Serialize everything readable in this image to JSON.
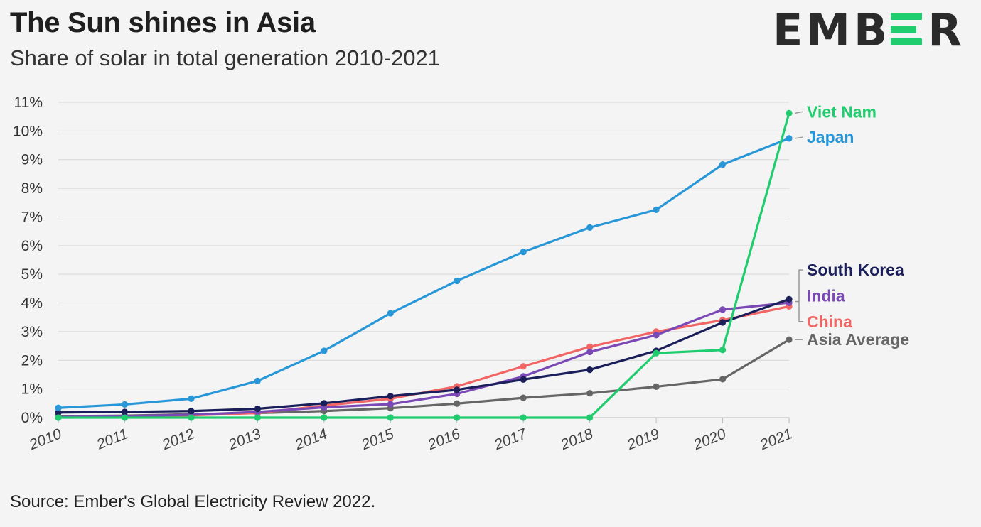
{
  "header": {
    "title": "The Sun shines in Asia",
    "subtitle": "Share of solar in total generation 2010-2021"
  },
  "logo": {
    "text_left": "EMB",
    "text_right": "R",
    "accent": "#1fcc6e"
  },
  "footer": {
    "source": "Source: Ember's Global Electricity Review 2022."
  },
  "chart_data": {
    "type": "line",
    "title": "The Sun shines in Asia",
    "subtitle": "Share of solar in total generation 2010-2021",
    "xlabel": "",
    "ylabel": "",
    "x": [
      "2010",
      "2011",
      "2012",
      "2013",
      "2014",
      "2015",
      "2016",
      "2017",
      "2018",
      "2019",
      "2020",
      "2021"
    ],
    "y_ticks": [
      "0%",
      "1%",
      "2%",
      "3%",
      "4%",
      "5%",
      "6%",
      "7%",
      "8%",
      "9%",
      "10%",
      "11%"
    ],
    "ylim": [
      0,
      11
    ],
    "grid": true,
    "legend": "end-of-line labels (right)",
    "series": [
      {
        "name": "Asia Average",
        "color": "#666666",
        "values": [
          0.05,
          0.07,
          0.12,
          0.16,
          0.23,
          0.33,
          0.49,
          0.69,
          0.85,
          1.08,
          1.34,
          2.72
        ]
      },
      {
        "name": "China",
        "color": "#f26565",
        "values": [
          0.02,
          0.04,
          0.08,
          0.16,
          0.42,
          0.66,
          1.09,
          1.79,
          2.47,
          3.0,
          3.4,
          3.88
        ]
      },
      {
        "name": "India",
        "color": "#7b49b5",
        "values": [
          0.02,
          0.05,
          0.1,
          0.2,
          0.36,
          0.47,
          0.83,
          1.44,
          2.29,
          2.88,
          3.77,
          4.01
        ]
      },
      {
        "name": "South Korea",
        "color": "#1a1f5a",
        "values": [
          0.18,
          0.2,
          0.23,
          0.31,
          0.5,
          0.75,
          0.97,
          1.33,
          1.67,
          2.33,
          3.32,
          4.13
        ]
      },
      {
        "name": "Japan",
        "color": "#2897d8",
        "values": [
          0.34,
          0.46,
          0.66,
          1.28,
          2.33,
          3.64,
          4.77,
          5.78,
          6.63,
          7.25,
          8.83,
          9.74
        ]
      },
      {
        "name": "Viet Nam",
        "color": "#1fcc6e",
        "values": [
          0.0,
          0.0,
          0.0,
          0.0,
          0.0,
          0.0,
          0.0,
          0.0,
          0.0,
          2.25,
          2.36,
          10.62
        ]
      }
    ],
    "end_labels": [
      {
        "name": "Viet Nam",
        "color": "#1fcc6e",
        "label_y_value": 10.67
      },
      {
        "name": "Japan",
        "color": "#2897d8",
        "label_y_value": 9.78
      },
      {
        "name": "South Korea",
        "color": "#1a1f5a",
        "label_y_value": 5.15
      },
      {
        "name": "India",
        "color": "#7b49b5",
        "label_y_value": 4.25
      },
      {
        "name": "China",
        "color": "#f26565",
        "label_y_value": 3.35
      },
      {
        "name": "Asia Average",
        "color": "#666666",
        "label_y_value": 2.72
      }
    ]
  }
}
